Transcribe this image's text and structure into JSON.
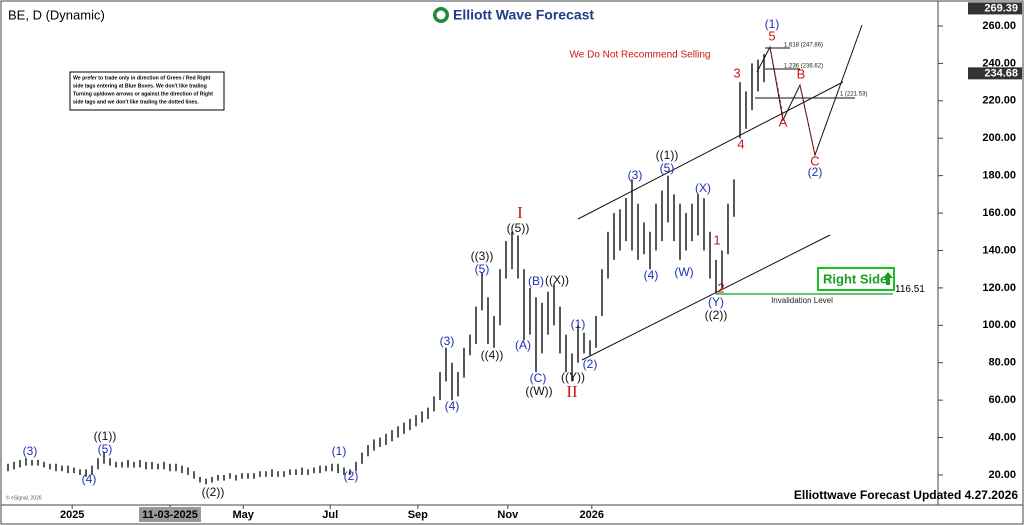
{
  "chart_data": {
    "type": "ohlc",
    "title": "BE, D (Dynamic)",
    "logo": "Elliott Wave Forecast",
    "footer": "Elliottwave Forecast Updated 4.27.2026",
    "copyright": "© eSignal, 2026",
    "note": [
      "We prefer to trade only in direction of Green / Red Right",
      "side tags entering at Blue Boxes. We don't like trading",
      "Turning up/down arrows or against the direction of Right",
      "side tags and we don't like trading the dotted lines."
    ],
    "right_side": "Right Side",
    "color": "#111111",
    "high": [
      26,
      27,
      28,
      29,
      28,
      28,
      27,
      26,
      26,
      25,
      25,
      24,
      23,
      23,
      25,
      29,
      32,
      29,
      27,
      27,
      28,
      27,
      28,
      27,
      27,
      26,
      27,
      26,
      26,
      25,
      24,
      22,
      19,
      18,
      19,
      20,
      20,
      21,
      20,
      21,
      21,
      21,
      22,
      22,
      23,
      22,
      22,
      23,
      23,
      24,
      23,
      24,
      25,
      25,
      26,
      26,
      24,
      23,
      27,
      32,
      36,
      39,
      40,
      42,
      44,
      46,
      48,
      50,
      52,
      54,
      56,
      62,
      75,
      88,
      80,
      75,
      88,
      95,
      110,
      128,
      115,
      105,
      130,
      145,
      150,
      148,
      130,
      120,
      115,
      112,
      118,
      122,
      110,
      95,
      85,
      100,
      96,
      92,
      105,
      130,
      150,
      160,
      162,
      168,
      178,
      165,
      155,
      150,
      165,
      172,
      180,
      170,
      165,
      160,
      165,
      170,
      168,
      150,
      135,
      140,
      165,
      178,
      230,
      225,
      240,
      242,
      245
    ],
    "low": [
      22,
      23,
      24,
      25,
      25,
      25,
      24,
      23,
      22,
      22,
      21,
      21,
      20,
      19,
      20,
      23,
      26,
      25,
      24,
      24,
      24,
      24,
      24,
      23,
      23,
      23,
      23,
      22,
      22,
      21,
      20,
      18,
      16,
      15,
      16,
      17,
      17,
      18,
      17,
      18,
      18,
      18,
      19,
      19,
      19,
      19,
      19,
      20,
      20,
      20,
      20,
      21,
      21,
      22,
      22,
      21,
      20,
      20,
      22,
      26,
      30,
      33,
      35,
      36,
      38,
      40,
      42,
      44,
      46,
      48,
      50,
      54,
      60,
      70,
      60,
      62,
      72,
      84,
      90,
      108,
      90,
      88,
      100,
      125,
      130,
      125,
      92,
      95,
      75,
      85,
      95,
      100,
      85,
      75,
      70,
      80,
      85,
      84,
      88,
      105,
      125,
      135,
      140,
      145,
      140,
      135,
      138,
      130,
      140,
      145,
      155,
      145,
      135,
      140,
      145,
      148,
      140,
      125,
      117,
      120,
      138,
      158,
      200,
      205,
      215,
      225,
      230
    ],
    "ylim": [
      7,
      271
    ],
    "yticks": [
      {
        "value": 20,
        "label": "20.00"
      },
      {
        "value": 40,
        "label": "40.00"
      },
      {
        "value": 60,
        "label": "60.00"
      },
      {
        "value": 80,
        "label": "80.00"
      },
      {
        "value": 100,
        "label": "100.00"
      },
      {
        "value": 120,
        "label": "120.00"
      },
      {
        "value": 140,
        "label": "140.00"
      },
      {
        "value": 160,
        "label": "160.00"
      },
      {
        "value": 180,
        "label": "180.00"
      },
      {
        "value": 200,
        "label": "200.00"
      },
      {
        "value": 220,
        "label": "220.00"
      },
      {
        "value": 240,
        "label": "240.00"
      },
      {
        "value": 260,
        "label": "260.00"
      }
    ],
    "xticks": [
      {
        "value": 10.7,
        "label": "2025"
      },
      {
        "value": 27,
        "label": "11-03-2025"
      },
      {
        "value": 39.2,
        "label": "May"
      },
      {
        "value": 53.7,
        "label": "Jul"
      },
      {
        "value": 68.3,
        "label": "Sep"
      },
      {
        "value": 83.3,
        "label": "Nov"
      },
      {
        "value": 97.3,
        "label": "2026"
      }
    ],
    "price_tags": [
      269.39,
      234.68,
      116.51
    ],
    "annotations": [
      "(3)",
      "(4)",
      "((1))",
      "(5)",
      "((2))",
      "(1)",
      "(2)",
      "(3)",
      "(4)",
      "((3))",
      "(5)",
      "((4))",
      "((5))",
      "I",
      "(A)",
      "(B)",
      "((X))",
      "(C)",
      "((W))",
      "(1)",
      "(2)",
      "((Y))",
      "II",
      "(3)",
      "((1))",
      "(5)",
      "(4)",
      "(W)",
      "(X)",
      "1",
      "2",
      "(Y)",
      "((2))",
      "3",
      "4",
      "5",
      "(1)",
      "A",
      "B",
      "C",
      "(2)",
      "We Do Not Recommend Selling",
      "1.618 (247.86)",
      "1.236 (236.62)",
      "1 (221.53)",
      "Invalidation Level"
    ]
  }
}
